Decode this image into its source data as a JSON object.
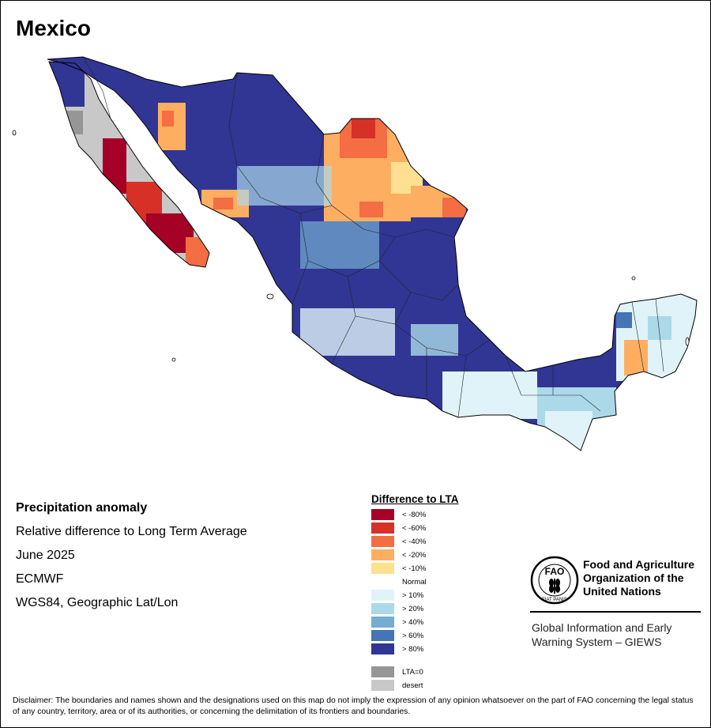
{
  "title": "Mexico",
  "info": {
    "product": "Precipitation anomaly",
    "description": "Relative difference to Long Term Average",
    "period": "June 2025",
    "source": "ECMWF",
    "projection": "WGS84, Geographic Lat/Lon"
  },
  "legend": {
    "title": "Difference to LTA",
    "classes": [
      {
        "label": "< -80%",
        "color": "#a50026"
      },
      {
        "label": "< -60%",
        "color": "#d73027"
      },
      {
        "label": "< -40%",
        "color": "#f46d43"
      },
      {
        "label": "< -20%",
        "color": "#fdae61"
      },
      {
        "label": "< -10%",
        "color": "#fee090"
      },
      {
        "label": "Normal",
        "color": "#ffffff"
      },
      {
        "label": "> 10%",
        "color": "#e0f3f8"
      },
      {
        "label": "> 20%",
        "color": "#abd9e9"
      },
      {
        "label": "> 40%",
        "color": "#74add1"
      },
      {
        "label": "> 60%",
        "color": "#4575b4"
      },
      {
        "label": "> 80%",
        "color": "#313695"
      }
    ],
    "extra": [
      {
        "label": "LTA=0",
        "color": "#969696"
      },
      {
        "label": "desert",
        "color": "#c8c8c8"
      }
    ]
  },
  "logo": {
    "letters": "FAO",
    "motto": "FIAT PANIS",
    "org_line1": "Food and Agriculture",
    "org_line2": "Organization of the",
    "org_line3": "United Nations",
    "system_line1": "Global Information and Early",
    "system_line2": "Warning System – GIEWS"
  },
  "disclaimer": "Disclaimer: The boundaries and names shown and the designations used on this map do not imply the expression of any opinion whatsoever on the part of FAO concerning the legal status of any country, territory, area or of its authorities, or concerning the delimitation of its frontiers and boundaries."
}
